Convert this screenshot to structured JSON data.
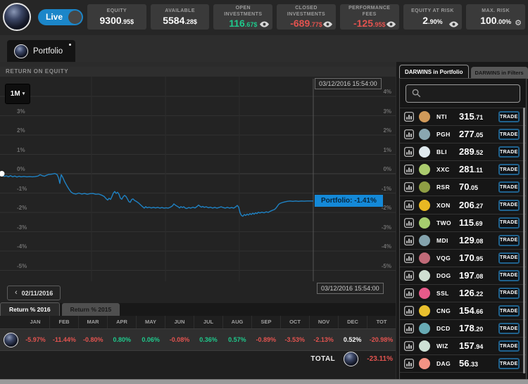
{
  "colors": {
    "accent_blue": "#1489d8",
    "positive": "#1fc98c",
    "negative": "#e2534f",
    "line": "#1f82c4"
  },
  "topbar": {
    "live_label": "Live",
    "stats": [
      {
        "label": "EQUITY",
        "int": "9300",
        "dec": ".95$",
        "tone": "neutral",
        "icon": ""
      },
      {
        "label": "AVAILABLE",
        "int": "5584",
        "dec": ".28$",
        "tone": "neutral",
        "icon": ""
      },
      {
        "label": "OPEN INVESTMENTS",
        "int": "116",
        "dec": ".67$",
        "tone": "positive",
        "icon": "eye"
      },
      {
        "label": "CLOSED INVESTMENTS",
        "int": "-689",
        "dec": ".77$",
        "tone": "negative",
        "icon": "eye"
      },
      {
        "label": "PERFORMANCE FEES",
        "int": "-125",
        "dec": ".95$",
        "tone": "negative",
        "icon": "eye"
      },
      {
        "label": "EQUITY AT RISK",
        "int": "2",
        "dec": ".90%",
        "tone": "neutral",
        "icon": "eye"
      },
      {
        "label": "MAX. RISK",
        "int": "100",
        "dec": ".00%",
        "tone": "neutral",
        "icon": "gear"
      }
    ]
  },
  "portfolio_tab": {
    "label": "Portfolio"
  },
  "chart_data": {
    "type": "line",
    "title": "RETURN ON EQUITY",
    "range_selector": "1M",
    "y_unit": "%",
    "ylim": [
      -5.5,
      4.5
    ],
    "grid": true,
    "legend_position": "none",
    "ylabels_left": [
      "3%",
      "2%",
      "1%",
      "0%",
      "-1%",
      "-2%",
      "-3%",
      "-4%",
      "-5%"
    ],
    "ylabels_left_pcts": [
      3,
      2,
      1,
      0,
      -1,
      -2,
      -3,
      -4,
      -5
    ],
    "ylabels_right": [
      "4%",
      "3%",
      "2%",
      "1%",
      "0%",
      "-1%",
      "-2%",
      "-3%",
      "-4%",
      "-5%"
    ],
    "ylabels_right_pcts": [
      4,
      3,
      2,
      1,
      0,
      -1,
      -2,
      -3,
      -4,
      -5
    ],
    "grid_pcts": [
      4,
      3,
      2,
      1,
      0,
      -1,
      -2,
      -3,
      -4,
      -5
    ],
    "vgrid_x": [
      130,
      235,
      340
    ],
    "cursor_x": 445,
    "x_start_date": "02/11/2016",
    "cursor_datetime": "03/12/2016 15:54:00",
    "tooltip": "Portfolio: -1.41%",
    "series": [
      {
        "name": "Portfolio",
        "final_value_pct": -1.41,
        "points": [
          [
            0,
            0
          ],
          [
            3,
            -0.06
          ],
          [
            6,
            -0.14
          ],
          [
            9,
            -0.11
          ],
          [
            12,
            -0.16
          ],
          [
            15,
            -0.1
          ],
          [
            18,
            -0.16
          ],
          [
            21,
            -0.12
          ],
          [
            24,
            -0.17
          ],
          [
            27,
            -0.13
          ],
          [
            30,
            -0.16
          ],
          [
            34,
            -0.14
          ],
          [
            38,
            -0.16
          ],
          [
            42,
            -0.15
          ],
          [
            46,
            -0.16
          ],
          [
            50,
            -0.15
          ],
          [
            54,
            -0.12
          ],
          [
            57,
            -0.05
          ],
          [
            60,
            -0.1
          ],
          [
            63,
            -0.13
          ],
          [
            66,
            -0.08
          ],
          [
            69,
            -0.04
          ],
          [
            72,
            -0.03
          ],
          [
            75,
            -0.01
          ],
          [
            78,
            0.01
          ],
          [
            81,
            -0.04
          ],
          [
            83,
            -0.2
          ],
          [
            85,
            -0.5
          ],
          [
            86,
            -0.25
          ],
          [
            87,
            -0.05
          ],
          [
            89,
            -0.18
          ],
          [
            92,
            -0.42
          ],
          [
            95,
            -0.62
          ],
          [
            98,
            -0.8
          ],
          [
            101,
            -0.95
          ],
          [
            104,
            -1.02
          ],
          [
            108,
            -1.05
          ],
          [
            112,
            -1.0
          ],
          [
            116,
            -1.05
          ],
          [
            120,
            -1.02
          ],
          [
            124,
            -1.06
          ],
          [
            128,
            -1.03
          ],
          [
            132,
            -1.02
          ],
          [
            136,
            -1.06
          ],
          [
            140,
            -1.05
          ],
          [
            144,
            -1.1
          ],
          [
            148,
            -1.18
          ],
          [
            151,
            -1.3
          ],
          [
            153,
            -1.36
          ],
          [
            155,
            -1.27
          ],
          [
            157,
            -1.33
          ],
          [
            159,
            -1.18
          ],
          [
            161,
            -1.0
          ],
          [
            163,
            -0.92
          ],
          [
            165,
            -1.02
          ],
          [
            167,
            -0.96
          ],
          [
            169,
            -1.06
          ],
          [
            171,
            -1.26
          ],
          [
            173,
            -1.32
          ],
          [
            175,
            -1.19
          ],
          [
            177,
            -1.12
          ],
          [
            179,
            -1.18
          ],
          [
            181,
            -1.3
          ],
          [
            183,
            -1.44
          ],
          [
            185,
            -1.48
          ],
          [
            187,
            -1.34
          ],
          [
            189,
            -1.3
          ],
          [
            191,
            -1.38
          ],
          [
            194,
            -1.44
          ],
          [
            197,
            -1.52
          ],
          [
            200,
            -1.62
          ],
          [
            203,
            -1.72
          ],
          [
            205,
            -1.78
          ],
          [
            207,
            -1.7
          ],
          [
            209,
            -1.76
          ],
          [
            212,
            -1.73
          ],
          [
            215,
            -1.77
          ],
          [
            218,
            -1.74
          ],
          [
            221,
            -1.77
          ],
          [
            224,
            -1.74
          ],
          [
            227,
            -1.78
          ],
          [
            230,
            -1.75
          ],
          [
            233,
            -1.78
          ],
          [
            236,
            -1.76
          ],
          [
            239,
            -1.78
          ],
          [
            242,
            -1.73
          ],
          [
            245,
            -1.66
          ],
          [
            247,
            -1.56
          ],
          [
            249,
            -1.62
          ],
          [
            251,
            -1.67
          ],
          [
            253,
            -1.71
          ],
          [
            255,
            -1.77
          ],
          [
            257,
            -1.7
          ],
          [
            259,
            -1.75
          ],
          [
            261,
            -1.71
          ],
          [
            263,
            -1.77
          ],
          [
            265,
            -1.8
          ],
          [
            268,
            -1.75
          ],
          [
            271,
            -1.78
          ],
          [
            274,
            -1.73
          ],
          [
            277,
            -1.77
          ],
          [
            280,
            -1.69
          ],
          [
            282,
            -1.62
          ],
          [
            284,
            -1.68
          ],
          [
            286,
            -1.73
          ],
          [
            288,
            -1.69
          ],
          [
            290,
            -1.74
          ],
          [
            293,
            -1.71
          ],
          [
            296,
            -1.76
          ],
          [
            299,
            -1.73
          ],
          [
            302,
            -1.78
          ],
          [
            305,
            -1.74
          ],
          [
            308,
            -1.78
          ],
          [
            311,
            -1.75
          ],
          [
            314,
            -1.71
          ],
          [
            317,
            -1.75
          ],
          [
            320,
            -1.78
          ],
          [
            323,
            -1.74
          ],
          [
            326,
            -1.78
          ],
          [
            329,
            -1.75
          ],
          [
            332,
            -1.78
          ],
          [
            335,
            -1.71
          ],
          [
            337,
            -1.64
          ],
          [
            339,
            -1.73
          ],
          [
            341,
            -2.02
          ],
          [
            343,
            -2.16
          ],
          [
            345,
            -2.2
          ],
          [
            347,
            -2.11
          ],
          [
            349,
            -2.16
          ],
          [
            351,
            -2.09
          ],
          [
            353,
            -2.14
          ],
          [
            355,
            -2.06
          ],
          [
            357,
            -2.11
          ],
          [
            359,
            -2.04
          ],
          [
            361,
            -2.09
          ],
          [
            363,
            -2.02
          ],
          [
            365,
            -2.06
          ],
          [
            367,
            -1.99
          ],
          [
            369,
            -2.03
          ],
          [
            372,
            -1.99
          ],
          [
            375,
            -2.02
          ],
          [
            378,
            -1.97
          ],
          [
            381,
            -2.0
          ],
          [
            384,
            -1.94
          ],
          [
            387,
            -1.89
          ],
          [
            390,
            -1.85
          ],
          [
            392,
            -1.78
          ],
          [
            394,
            -1.68
          ],
          [
            396,
            -1.58
          ],
          [
            398,
            -1.53
          ],
          [
            401,
            -1.49
          ],
          [
            404,
            -1.46
          ],
          [
            408,
            -1.43
          ],
          [
            412,
            -1.41
          ],
          [
            416,
            -1.43
          ],
          [
            420,
            -1.41
          ],
          [
            424,
            -1.43
          ],
          [
            428,
            -1.41
          ],
          [
            432,
            -1.42
          ],
          [
            436,
            -1.41
          ],
          [
            440,
            -1.41
          ],
          [
            445,
            -1.41
          ]
        ]
      }
    ]
  },
  "period_tabs": [
    {
      "label": "Return % 2016",
      "active": true
    },
    {
      "label": "Return % 2015",
      "active": false
    }
  ],
  "monthly_table": {
    "columns": [
      "JAN",
      "FEB",
      "MAR",
      "APR",
      "MAY",
      "JUN",
      "JUL",
      "AUG",
      "SEP",
      "OCT",
      "NOV",
      "DEC",
      "TOT"
    ],
    "row": {
      "values": [
        "-5.97%",
        "-11.44%",
        "-0.80%",
        "0.80%",
        "0.06%",
        "-0.08%",
        "0.36%",
        "0.57%",
        "-0.89%",
        "-3.53%",
        "-2.13%",
        "0.52%",
        "-20.98%"
      ],
      "tones": [
        "negative",
        "negative",
        "negative",
        "positive",
        "positive",
        "negative",
        "positive",
        "positive",
        "negative",
        "negative",
        "negative",
        "neutral",
        "negative"
      ]
    },
    "total_label": "TOTAL",
    "total_value": "-23.11%",
    "total_tone": "negative"
  },
  "darwins_panel": {
    "tabs": [
      {
        "label": "DARWINS in Portfolio",
        "active": true
      },
      {
        "label": "DARWINS in Filters",
        "active": false
      }
    ],
    "trade_label": "TRADE",
    "items": [
      {
        "name": "NTI",
        "int": "315",
        "dec": ".71",
        "color": "#d09a5a"
      },
      {
        "name": "PGH",
        "int": "277",
        "dec": ".05",
        "color": "#8aa7b0"
      },
      {
        "name": "BLI",
        "int": "289",
        "dec": ".52",
        "color": "#dfe9ee"
      },
      {
        "name": "XXC",
        "int": "281",
        "dec": ".11",
        "color": "#aacb6d"
      },
      {
        "name": "RSR",
        "int": "70",
        "dec": ".05",
        "color": "#8f9e44"
      },
      {
        "name": "XON",
        "int": "206",
        "dec": ".27",
        "color": "#e8b823"
      },
      {
        "name": "TWO",
        "int": "115",
        "dec": ".69",
        "color": "#a5cd6e"
      },
      {
        "name": "MDI",
        "int": "129",
        "dec": ".08",
        "color": "#84a3ad"
      },
      {
        "name": "VQG",
        "int": "170",
        "dec": ".95",
        "color": "#c06a78"
      },
      {
        "name": "DOG",
        "int": "197",
        "dec": ".08",
        "color": "#cfdfd2"
      },
      {
        "name": "SSL",
        "int": "126",
        "dec": ".22",
        "color": "#e75a8a"
      },
      {
        "name": "CNG",
        "int": "154",
        "dec": ".66",
        "color": "#e9c02e"
      },
      {
        "name": "DCD",
        "int": "178",
        "dec": ".20",
        "color": "#67aab4"
      },
      {
        "name": "WIZ",
        "int": "157",
        "dec": ".94",
        "color": "#cde0d4"
      },
      {
        "name": "DAG",
        "int": "56",
        "dec": ".33",
        "color": "#f29384"
      }
    ]
  }
}
